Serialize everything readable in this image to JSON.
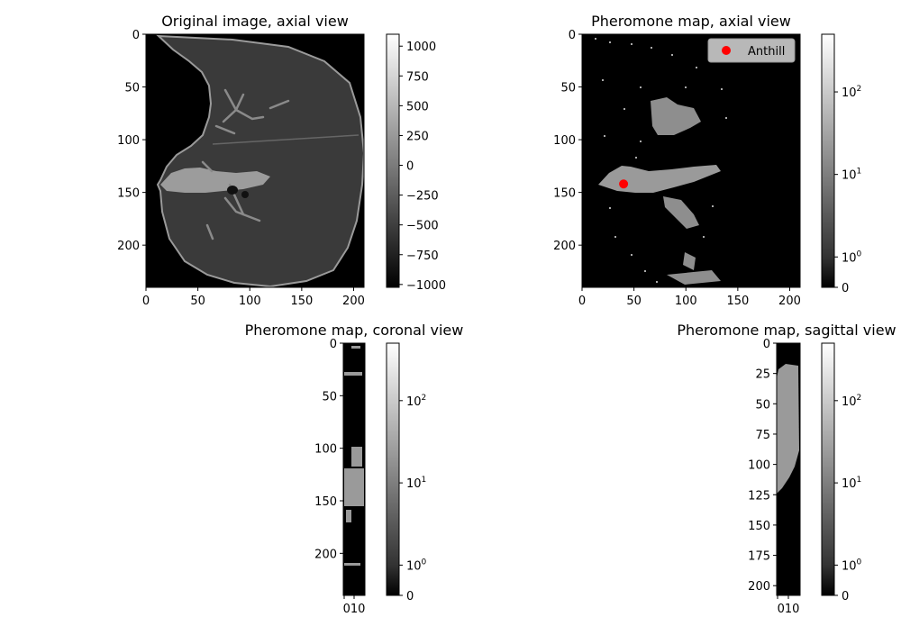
{
  "chart_data": [
    {
      "type": "heatmap",
      "title": "Original image, axial view",
      "xlim": [
        0,
        210
      ],
      "ylim": [
        240,
        0
      ],
      "xticks": [
        0,
        50,
        100,
        150,
        200
      ],
      "yticks": [
        0,
        50,
        100,
        150,
        200
      ],
      "colorbar": {
        "scale": "linear",
        "range": [
          -1024,
          1100
        ],
        "ticks": [
          1000,
          750,
          500,
          250,
          0,
          -250,
          -500,
          -750,
          -1000
        ],
        "tick_labels": [
          "1000",
          "750",
          "500",
          "250",
          "0",
          "−250",
          "−500",
          "−750",
          "−1000"
        ]
      },
      "colormap": "gray"
    },
    {
      "type": "heatmap",
      "title": "Pheromone map, axial view",
      "xlim": [
        0,
        210
      ],
      "ylim": [
        240,
        0
      ],
      "xticks": [
        0,
        50,
        100,
        150,
        200
      ],
      "yticks": [
        0,
        50,
        100,
        150,
        200
      ],
      "colorbar": {
        "scale": "symlog",
        "range": [
          0,
          500
        ],
        "ticks": [
          100,
          10,
          1,
          0
        ],
        "tick_labels": [
          {
            "base": "10",
            "exp": "2"
          },
          {
            "base": "10",
            "exp": "1"
          },
          {
            "base": "10",
            "exp": "0"
          },
          {
            "base": "0",
            "exp": ""
          }
        ]
      },
      "colormap": "gray",
      "marker": {
        "label": "Anthill",
        "x": 40,
        "y": 142,
        "color": "#ff0000"
      },
      "legend": "top-right"
    },
    {
      "type": "heatmap",
      "title": "Pheromone map, coronal view",
      "xlim": [
        0,
        20
      ],
      "ylim": [
        240,
        0
      ],
      "xticks_label": "010",
      "yticks": [
        0,
        50,
        100,
        150,
        200
      ],
      "colorbar": {
        "scale": "symlog",
        "range": [
          0,
          500
        ],
        "ticks": [
          100,
          10,
          1,
          0
        ],
        "tick_labels": [
          {
            "base": "10",
            "exp": "2"
          },
          {
            "base": "10",
            "exp": "1"
          },
          {
            "base": "10",
            "exp": "0"
          },
          {
            "base": "0",
            "exp": ""
          }
        ]
      },
      "colormap": "gray"
    },
    {
      "type": "heatmap",
      "title": "Pheromone map, sagittal view",
      "xlim": [
        0,
        20
      ],
      "ylim": [
        208,
        0
      ],
      "xticks_label": "010",
      "yticks": [
        0,
        25,
        50,
        75,
        100,
        125,
        150,
        175,
        200
      ],
      "colorbar": {
        "scale": "symlog",
        "range": [
          0,
          500
        ],
        "ticks": [
          100,
          10,
          1,
          0
        ],
        "tick_labels": [
          {
            "base": "10",
            "exp": "2"
          },
          {
            "base": "10",
            "exp": "1"
          },
          {
            "base": "10",
            "exp": "0"
          },
          {
            "base": "0",
            "exp": ""
          }
        ]
      },
      "colormap": "gray"
    }
  ]
}
